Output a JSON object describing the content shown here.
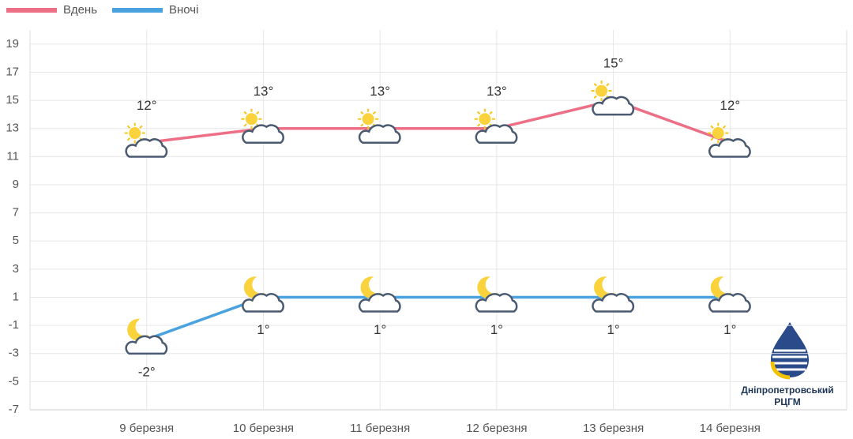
{
  "chart_data": {
    "type": "line",
    "categories": [
      "9 березня",
      "10 березня",
      "11 березня",
      "12 березня",
      "13 березня",
      "14 березня"
    ],
    "series": [
      {
        "name": "Вдень",
        "color": "#ec6f86",
        "values": [
          12,
          13,
          13,
          13,
          15,
          12
        ],
        "value_labels": [
          "12°",
          "13°",
          "13°",
          "13°",
          "15°",
          "12°"
        ]
      },
      {
        "name": "Вночі",
        "color": "#4aa3df",
        "values": [
          -2,
          1,
          1,
          1,
          1,
          1
        ],
        "value_labels": [
          "-2°",
          "1°",
          "1°",
          "1°",
          "1°",
          "1°"
        ]
      }
    ],
    "ylim": [
      -7,
      20
    ],
    "yticks": [
      -7,
      -5,
      -3,
      -1,
      1,
      3,
      5,
      7,
      9,
      11,
      13,
      15,
      17,
      19
    ],
    "grid": true,
    "logo": {
      "name": "Дніпропетровський",
      "subtitle": "РЦГМ"
    }
  }
}
